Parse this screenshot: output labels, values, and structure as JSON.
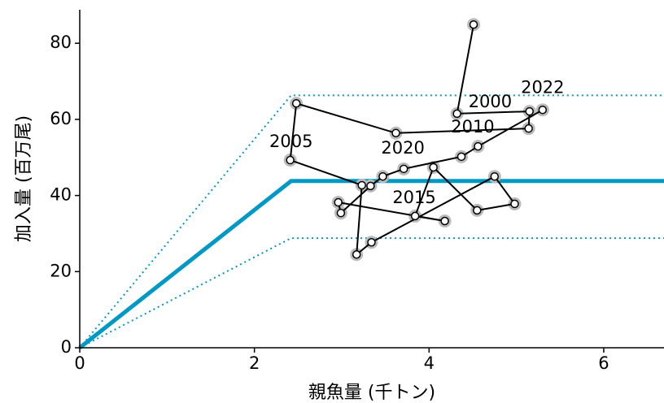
{
  "chart_data": {
    "type": "scatter",
    "xlabel": "親魚量 (千トン)",
    "ylabel": "加入量 (百万尾)",
    "xlim": [
      0,
      6.69
    ],
    "ylim": [
      0,
      88.8
    ],
    "xticks": [
      0,
      2,
      4,
      6
    ],
    "yticks": [
      0,
      20,
      40,
      60,
      80
    ],
    "lines": [
      {
        "color": "#0099c6",
        "style": "solid",
        "x": [
          0,
          2.42,
          6.69
        ],
        "y": [
          0,
          43.8,
          43.8
        ]
      },
      {
        "color": "#0099c6",
        "style": "dotted",
        "x": [
          0,
          2.42,
          6.69
        ],
        "y": [
          0,
          66.3,
          66.3
        ]
      },
      {
        "color": "#0099c6",
        "style": "dotted",
        "x": [
          0,
          2.42,
          6.69
        ],
        "y": [
          0,
          28.8,
          28.8
        ]
      }
    ],
    "series": [
      {
        "color": "#000000",
        "x": [
          4.51,
          4.32,
          5.15,
          5.14,
          3.62,
          2.48,
          2.41,
          3.23,
          3.17,
          3.34,
          4.75,
          4.98,
          4.55,
          4.05,
          3.84,
          4.18,
          2.96,
          2.99,
          3.33,
          3.47,
          3.71,
          4.37,
          4.56,
          5.3
        ],
        "values": [
          84.9,
          61.5,
          62.1,
          57.6,
          56.4,
          64.2,
          49.3,
          42.7,
          24.5,
          27.7,
          45.0,
          37.8,
          36.1,
          47.4,
          34.6,
          33.3,
          38.2,
          35.4,
          42.5,
          45.0,
          47.0,
          50.2,
          52.9,
          62.5
        ]
      }
    ],
    "annotations": [
      {
        "text": "2000",
        "x": 4.7,
        "y": 64.5
      },
      {
        "text": "2005",
        "x": 2.42,
        "y": 54.0
      },
      {
        "text": "2010",
        "x": 4.5,
        "y": 57.8
      },
      {
        "text": "2015",
        "x": 3.83,
        "y": 39.3
      },
      {
        "text": "2020",
        "x": 3.7,
        "y": 52.3
      },
      {
        "text": "2022",
        "x": 5.3,
        "y": 68.2
      }
    ]
  }
}
